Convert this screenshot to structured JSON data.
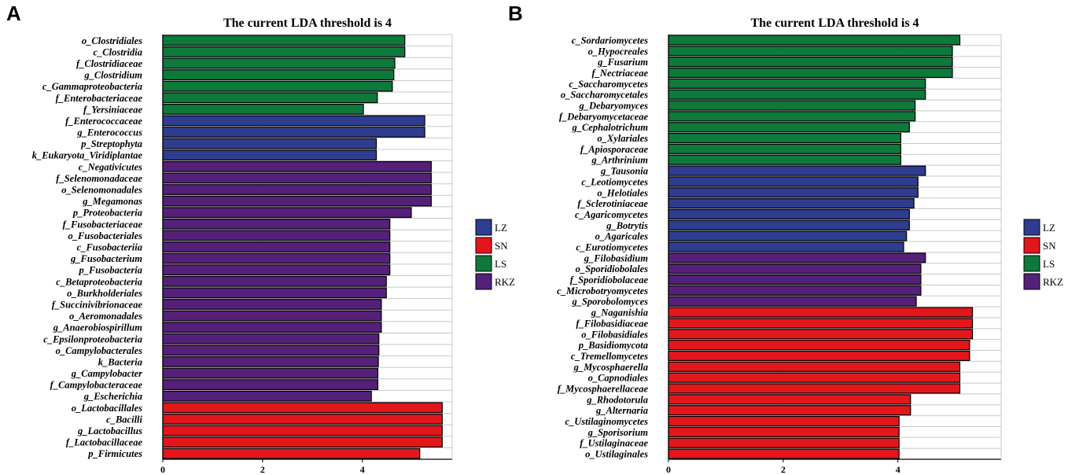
{
  "colors": {
    "LZ": "#2E3D8F",
    "SN": "#E3161C",
    "LS": "#0D7A3C",
    "RKZ": "#55207A"
  },
  "legend": [
    "LZ",
    "SN",
    "LS",
    "RKZ"
  ],
  "chart_data": [
    {
      "panel": "A",
      "type": "bar",
      "orientation": "horizontal",
      "title": "The current LDA threshold is 4",
      "xlim": [
        0,
        5.8
      ],
      "xticks": [
        0,
        2,
        4
      ],
      "categories": [
        "o_Clostridiales",
        "c_Clostridia",
        "f_Clostridiaceae",
        "g_Clostridium",
        "c_Gammaproteobacteria",
        "f_Enterobacteriaceae",
        "f_Yersiniaceae",
        "f_Enterococcaceae",
        "g_Enterococcus",
        "p_Streptophyta",
        "k_Eukaryota_Viridiplantae",
        "c_Negativicutes",
        "f_Selenomonadaceae",
        "o_Selenomonadales",
        "g_Megamonas",
        "p_Proteobacteria",
        "f_Fusobacteriaceae",
        "o_Fusobacteriales",
        "c_Fusobacteriia",
        "g_Fusobacterium",
        "p_Fusobacteria",
        "c_Betaproteobacteria",
        "o_Burkholderiales",
        "f_Succinivibrionaceae",
        "o_Aeromonadales",
        "g_Anaerobiospirillum",
        "c_Epsilonproteobacteria",
        "o_Campylobacterales",
        "k_Bacteria",
        "g_Campylobacter",
        "f_Campylobacteraceae",
        "g_Escherichia",
        "o_Lactobacillales",
        "c_Bacilli",
        "g_Lactobacillus",
        "f_Lactobacillaceae",
        "p_Firmicutes"
      ],
      "values": [
        4.85,
        4.85,
        4.65,
        4.63,
        4.6,
        4.3,
        4.02,
        5.25,
        5.25,
        4.28,
        4.28,
        5.38,
        5.38,
        5.38,
        5.38,
        4.98,
        4.55,
        4.55,
        4.55,
        4.55,
        4.55,
        4.48,
        4.48,
        4.38,
        4.38,
        4.38,
        4.33,
        4.33,
        4.32,
        4.31,
        4.31,
        4.18,
        5.6,
        5.6,
        5.6,
        5.6,
        5.15
      ],
      "groups": [
        "LS",
        "LS",
        "LS",
        "LS",
        "LS",
        "LS",
        "LS",
        "LZ",
        "LZ",
        "LZ",
        "LZ",
        "RKZ",
        "RKZ",
        "RKZ",
        "RKZ",
        "RKZ",
        "RKZ",
        "RKZ",
        "RKZ",
        "RKZ",
        "RKZ",
        "RKZ",
        "RKZ",
        "RKZ",
        "RKZ",
        "RKZ",
        "RKZ",
        "RKZ",
        "RKZ",
        "RKZ",
        "RKZ",
        "RKZ",
        "SN",
        "SN",
        "SN",
        "SN",
        "SN"
      ]
    },
    {
      "panel": "B",
      "type": "bar",
      "orientation": "horizontal",
      "title": "The current LDA threshold is 4",
      "xlim": [
        0,
        5.8
      ],
      "xticks": [
        0,
        2,
        4
      ],
      "categories": [
        "c_Sordariomycetes",
        "o_Hypocreales",
        "g_Fusarium",
        "f_Nectriaceae",
        "c_Saccharomycetes",
        "o_Saccharomycetales",
        "g_Debaryomyces",
        "f_Debaryomycetaceae",
        "g_Cephalotrichum",
        "o_Xylariales",
        "f_Apiosporaceae",
        "g_Arthrinium",
        "g_Tausonia",
        "c_Leotiomycetes",
        "o_Helotiales",
        "f_Sclerotiniaceae",
        "c_Agaricomycetes",
        "g_Botrytis",
        "o_Agaricales",
        "c_Eurotiomycetes",
        "g_Filobasidium",
        "o_Sporidiobolales",
        "f_Sporidiobolaceae",
        "c_Microbotryomycetes",
        "g_Sporobolomyces",
        "g_Naganishia",
        "f_Filobasidiaceae",
        "o_Filobasidiales",
        "p_Basidiomycota",
        "c_Tremellomycetes",
        "g_Mycosphaerella",
        "o_Capnodiales",
        "f_Mycosphaerellaceae",
        "g_Rhodotorula",
        "g_Alternaria",
        "c_Ustilaginomycetes",
        "g_Sporisorium",
        "f_Ustilaginaceae",
        "o_Ustilaginales"
      ],
      "values": [
        5.08,
        4.95,
        4.95,
        4.95,
        4.48,
        4.48,
        4.3,
        4.3,
        4.2,
        4.05,
        4.05,
        4.05,
        4.48,
        4.35,
        4.35,
        4.28,
        4.2,
        4.2,
        4.15,
        4.1,
        4.48,
        4.4,
        4.4,
        4.4,
        4.32,
        5.3,
        5.3,
        5.3,
        5.25,
        5.25,
        5.08,
        5.08,
        5.08,
        4.22,
        4.22,
        4.02,
        4.02,
        4.02,
        4.02
      ],
      "groups": [
        "LS",
        "LS",
        "LS",
        "LS",
        "LS",
        "LS",
        "LS",
        "LS",
        "LS",
        "LS",
        "LS",
        "LS",
        "LZ",
        "LZ",
        "LZ",
        "LZ",
        "LZ",
        "LZ",
        "LZ",
        "LZ",
        "RKZ",
        "RKZ",
        "RKZ",
        "RKZ",
        "RKZ",
        "SN",
        "SN",
        "SN",
        "SN",
        "SN",
        "SN",
        "SN",
        "SN",
        "SN",
        "SN",
        "SN",
        "SN",
        "SN",
        "SN"
      ]
    }
  ]
}
